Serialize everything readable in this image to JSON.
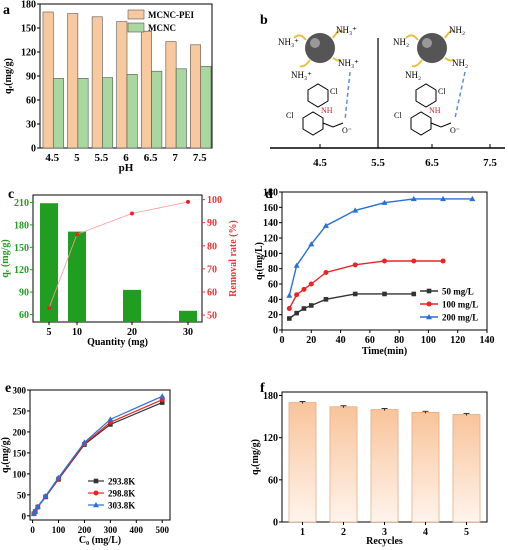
{
  "panels": {
    "a": {
      "letter": "a"
    },
    "b": {
      "letter": "b",
      "nh3_label": "NH₃⁺",
      "nh2_label": "NH₂",
      "cl_label": "Cl",
      "nh_label": "NH",
      "minus_label": "O⁻"
    },
    "c": {
      "letter": "c"
    },
    "d": {
      "letter": "d"
    },
    "e": {
      "letter": "e"
    },
    "f": {
      "letter": "f"
    }
  },
  "chart_data": [
    {
      "panel": "a",
      "type": "bar",
      "categories": [
        "4.5",
        "5",
        "5.5",
        "6",
        "6.5",
        "7",
        "7.5"
      ],
      "series": [
        {
          "name": "MCNC-PEI",
          "color": "#f8c89e",
          "values": [
            170,
            168,
            164,
            158,
            146,
            133,
            129
          ]
        },
        {
          "name": "MCNC",
          "color": "#a8d8a0",
          "values": [
            87,
            87,
            88,
            92,
            96,
            99,
            102
          ]
        }
      ],
      "xlabel": "pH",
      "ylabel": "qₑ(mg/g)",
      "yticks": [
        0,
        30,
        60,
        90,
        120,
        150,
        180
      ],
      "ylim": [
        0,
        180
      ],
      "legend": "top-right"
    },
    {
      "panel": "b",
      "type": "line",
      "xticks": [
        "4.5",
        "5.5",
        "6.5",
        "7.5"
      ],
      "note": "schematic"
    },
    {
      "panel": "c",
      "type": "bar",
      "categories": [
        "5",
        "10",
        "20",
        "30"
      ],
      "series": [
        {
          "name": "qₑ",
          "color": "#1f9e1f",
          "values": [
            209,
            171,
            93,
            65
          ]
        },
        {
          "name": "Removal rate",
          "color": "#ff5555",
          "values": [
            53,
            85,
            94,
            99
          ],
          "axis": "right"
        }
      ],
      "xlabel": "Quantity (mg)",
      "ylabel": "qₑ (mg/g)",
      "ylabel_right": "Removal rate (%)",
      "yticks": [
        60,
        90,
        120,
        150,
        180,
        210
      ],
      "ylim": [
        50,
        220
      ],
      "yticks_right": [
        50,
        60,
        70,
        80,
        90,
        100
      ],
      "ylim_right": [
        47,
        102
      ]
    },
    {
      "panel": "d",
      "type": "line",
      "series": [
        {
          "name": "50 mg/L",
          "color": "#333333",
          "marker": "square",
          "x": [
            5,
            10,
            15,
            20,
            30,
            50,
            70,
            90
          ],
          "y": [
            15,
            22,
            28,
            32,
            40,
            47,
            47,
            47
          ]
        },
        {
          "name": "100 mg/L",
          "color": "#ee2222",
          "marker": "circle",
          "x": [
            5,
            10,
            15,
            20,
            30,
            50,
            70,
            90,
            110
          ],
          "y": [
            28,
            46,
            53,
            60,
            75,
            85,
            90,
            90,
            90
          ]
        },
        {
          "name": "200 mg/L",
          "color": "#2a6fd6",
          "marker": "triangle",
          "x": [
            5,
            10,
            20,
            30,
            50,
            70,
            90,
            110,
            130
          ],
          "y": [
            45,
            84,
            112,
            136,
            156,
            166,
            171,
            171,
            171
          ]
        }
      ],
      "xlabel": "Time(min)",
      "ylabel": "qₜ(mg/L)",
      "xticks": [
        0,
        20,
        40,
        60,
        80,
        100,
        120,
        140
      ],
      "xlim": [
        0,
        140
      ],
      "yticks": [
        0,
        20,
        40,
        60,
        80,
        100,
        120,
        140,
        160,
        180
      ],
      "ylim": [
        0,
        180
      ],
      "legend": "bottom-right"
    },
    {
      "panel": "e",
      "type": "line",
      "series": [
        {
          "name": "293.8K",
          "color": "#333333",
          "marker": "square",
          "x": [
            5,
            10,
            20,
            50,
            100,
            200,
            300,
            500
          ],
          "y": [
            5,
            10,
            21,
            45,
            87,
            170,
            218,
            270
          ]
        },
        {
          "name": "298.8K",
          "color": "#ee2222",
          "marker": "circle",
          "x": [
            5,
            10,
            20,
            50,
            100,
            200,
            300,
            500
          ],
          "y": [
            5,
            10,
            21,
            46,
            89,
            172,
            223,
            277
          ]
        },
        {
          "name": "303.8K",
          "color": "#2a6fd6",
          "marker": "triangle",
          "x": [
            5,
            10,
            20,
            50,
            100,
            200,
            300,
            500
          ],
          "y": [
            5,
            11,
            22,
            47,
            91,
            175,
            230,
            285
          ]
        }
      ],
      "xlabel": "C₀ (mg/L)",
      "ylabel": "qₑ(mg/g)",
      "xticks": [
        0,
        100,
        200,
        300,
        400,
        500
      ],
      "xlim": [
        -10,
        530
      ],
      "yticks": [
        0,
        50,
        100,
        150,
        200,
        250,
        300
      ],
      "ylim": [
        -10,
        300
      ],
      "legend": "bottom-right"
    },
    {
      "panel": "f",
      "type": "bar",
      "categories": [
        "1",
        "2",
        "3",
        "4",
        "5"
      ],
      "series": [
        {
          "name": "qₑ",
          "color": "#f8c89e",
          "values": [
            170,
            164,
            160,
            156,
            153
          ],
          "errors": [
            1.5,
            1.5,
            1.5,
            1.5,
            1.5
          ]
        }
      ],
      "xlabel": "Recycles",
      "ylabel": "qₑ(mg/g)",
      "yticks": [
        0,
        60,
        120,
        180
      ],
      "ylim": [
        0,
        185
      ]
    }
  ]
}
